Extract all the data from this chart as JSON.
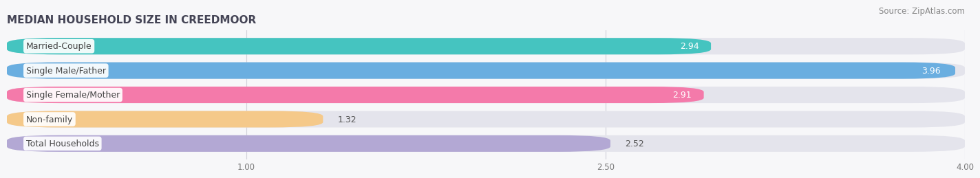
{
  "title": "MEDIAN HOUSEHOLD SIZE IN CREEDMOOR",
  "source": "Source: ZipAtlas.com",
  "categories": [
    "Married-Couple",
    "Single Male/Father",
    "Single Female/Mother",
    "Non-family",
    "Total Households"
  ],
  "values": [
    2.94,
    3.96,
    2.91,
    1.32,
    2.52
  ],
  "bar_colors": [
    "#45c4c0",
    "#6aaee0",
    "#f47aaa",
    "#f5c98a",
    "#b3a8d4"
  ],
  "bar_bg_color": "#e4e4ec",
  "xmin": 0.0,
  "xmax": 4.0,
  "xticks": [
    1.0,
    2.5,
    4.0
  ],
  "xtick_labels": [
    "1.00",
    "2.50",
    "4.00"
  ],
  "label_fontsize": 9.0,
  "value_fontsize": 9.0,
  "title_fontsize": 11,
  "source_fontsize": 8.5,
  "background_color": "#f7f7f9",
  "bar_height": 0.68,
  "bar_spacing": 1.0
}
